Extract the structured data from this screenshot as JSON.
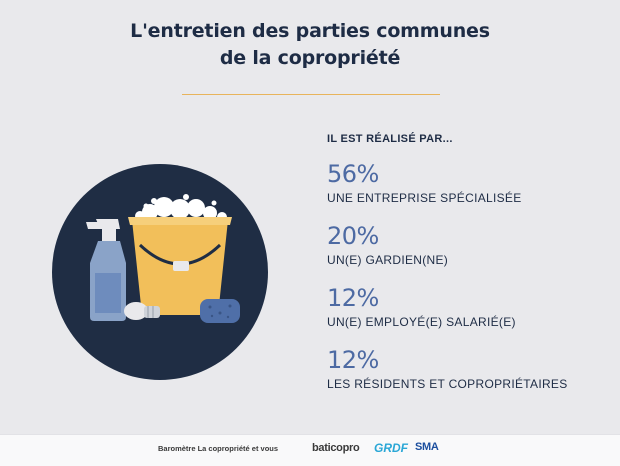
{
  "title_line1": "L'entretien des parties communes",
  "title_line2": "de la copropriété",
  "subheading": "IL EST RÉALISÉ PAR...",
  "chart_data": {
    "type": "table",
    "unit": "%",
    "categories": [
      "UNE ENTREPRISE SPÉCIALISÉE",
      "UN(E) GARDIEN(NE)",
      "UN(E) EMPLOYÉ(E) SALARIÉ(E)",
      "LES RÉSIDENTS ET COPROPRIÉTAIRES"
    ],
    "values": [
      56,
      20,
      12,
      12
    ],
    "value_labels": [
      "56%",
      "20%",
      "12%",
      "12%"
    ]
  },
  "footer": {
    "caption": "Baromètre La copropriété et vous",
    "logo1": "baticopro",
    "logo2": "GRDF",
    "logo3": "SMA"
  },
  "colors": {
    "background": "#e9e9ec",
    "navy": "#1e2c45",
    "value_blue": "#4d6aa3",
    "accent_rule": "#e8b45c",
    "bucket": "#f2bf5a",
    "sponge": "#4f6fa8"
  }
}
